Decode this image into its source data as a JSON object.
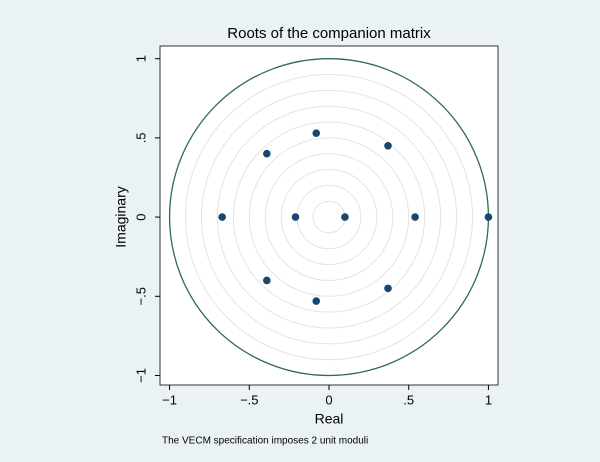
{
  "chart_data": {
    "type": "scatter",
    "title": "Roots of the companion matrix",
    "x_label": "Real",
    "y_label": "Imaginary",
    "note": "The VECM specification imposes 2 unit moduli",
    "x": [
      -0.67,
      -0.21,
      0.1,
      0.54,
      1,
      -0.39,
      -0.39,
      -0.08,
      -0.08,
      0.37,
      0.37
    ],
    "values": [
      0,
      0,
      0,
      0,
      0,
      0.4,
      -0.4,
      0.53,
      -0.53,
      0.45,
      -0.45
    ],
    "color": "#1a476f",
    "circle_color": "#2e6a58",
    "xlim": [
      -1.06,
      1.06
    ],
    "ylim": [
      -1.06,
      1.08
    ],
    "xticks": [
      {
        "value": -1,
        "label": "−1"
      },
      {
        "value": -0.5,
        "label": "−.5"
      },
      0,
      {
        "value": 0.5,
        "label": ".5"
      },
      1
    ],
    "yticks": [
      {
        "value": -1,
        "label": "−1"
      },
      {
        "value": -0.5,
        "label": "−.5"
      },
      0,
      {
        "value": 0.5,
        "label": ".5"
      },
      1
    ],
    "grid": true
  }
}
